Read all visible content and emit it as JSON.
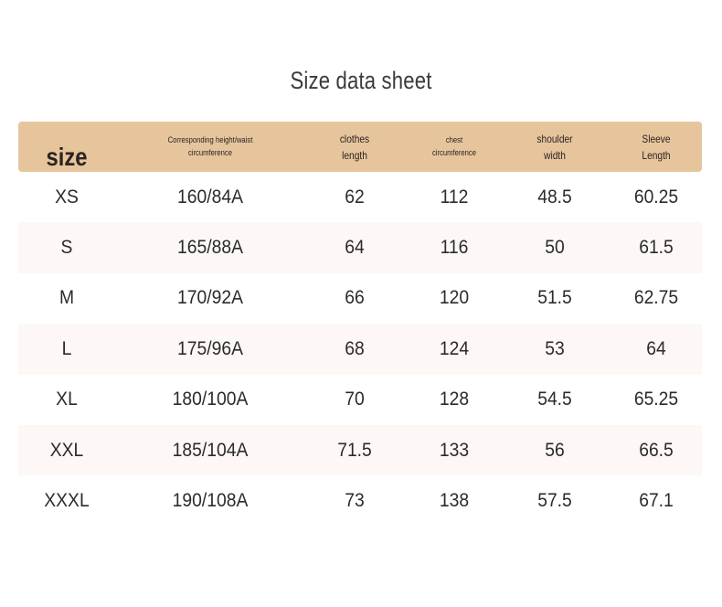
{
  "title": "Size data sheet",
  "headers": [
    {
      "lines": [
        "size"
      ]
    },
    {
      "lines": [
        "Corresponding height/waist",
        "circumference"
      ]
    },
    {
      "lines": [
        "clothes",
        "length"
      ]
    },
    {
      "lines": [
        "chest",
        "circumference"
      ]
    },
    {
      "lines": [
        "shoulder",
        "width"
      ]
    },
    {
      "lines": [
        "Sleeve",
        "Length"
      ]
    }
  ],
  "rows": [
    [
      "XS",
      "160/84A",
      "62",
      "112",
      "48.5",
      "60.25"
    ],
    [
      "S",
      "165/88A",
      "64",
      "116",
      "50",
      "61.5"
    ],
    [
      "M",
      "170/92A",
      "66",
      "120",
      "51.5",
      "62.75"
    ],
    [
      "L",
      "175/96A",
      "68",
      "124",
      "53",
      "64"
    ],
    [
      "XL",
      "180/100A",
      "70",
      "128",
      "54.5",
      "65.25"
    ],
    [
      "XXL",
      "185/104A",
      "71.5",
      "133",
      "56",
      "66.5"
    ],
    [
      "XXXL",
      "190/108A",
      "73",
      "138",
      "57.5",
      "67.1"
    ]
  ],
  "colors": {
    "header_bg": "#e6c59d",
    "alt_row_bg": "#fdf8f6"
  }
}
